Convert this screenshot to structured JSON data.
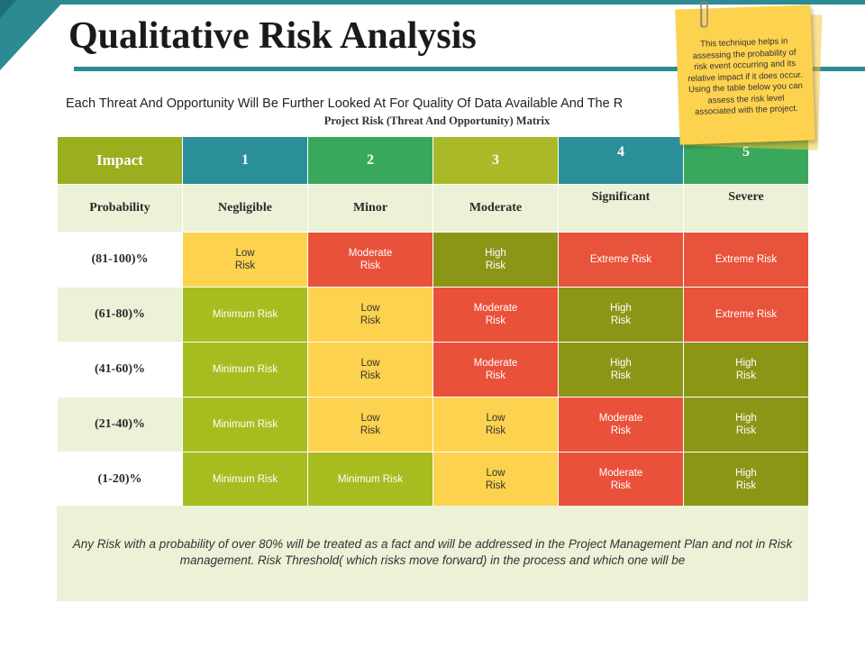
{
  "title": "Qualitative Risk Analysis",
  "intro": "Each Threat And Opportunity Will Be Further Looked At For Quality Of Data Available And The R",
  "matrix_title": "Project Risk (Threat And Opportunity) Matrix",
  "note": "This technique helps in assessing the probability of risk event occurring and its relative impact if it does occur. Using the table below you can assess the risk level associated with the project.",
  "header": {
    "impact_label": "Impact",
    "levels": [
      "1",
      "2",
      "3",
      "4",
      "5"
    ]
  },
  "labels": {
    "probability": "Probability",
    "severities": [
      "Negligible",
      "Minor",
      "Moderate",
      "Significant",
      "Severe"
    ]
  },
  "rows": [
    {
      "prob": "(81-100)%",
      "cells": [
        [
          "Low",
          "Risk"
        ],
        [
          "Moderate",
          "Risk"
        ],
        [
          "High",
          "Risk"
        ],
        [
          "Extreme Risk",
          ""
        ],
        [
          "Extreme Risk",
          ""
        ]
      ]
    },
    {
      "prob": "(61-80)%",
      "cells": [
        [
          "Minimum Risk",
          ""
        ],
        [
          "Low",
          "Risk"
        ],
        [
          "Moderate",
          "Risk"
        ],
        [
          "High",
          "Risk"
        ],
        [
          "Extreme Risk",
          ""
        ]
      ]
    },
    {
      "prob": "(41-60)%",
      "cells": [
        [
          "Minimum Risk",
          ""
        ],
        [
          "Low",
          "Risk"
        ],
        [
          "Moderate",
          "Risk"
        ],
        [
          "High",
          "Risk"
        ],
        [
          "High",
          "Risk"
        ]
      ]
    },
    {
      "prob": "(21-40)%",
      "cells": [
        [
          "Minimum Risk",
          ""
        ],
        [
          "Low",
          "Risk"
        ],
        [
          "Low",
          "Risk"
        ],
        [
          "Moderate",
          "Risk"
        ],
        [
          "High",
          "Risk"
        ]
      ]
    },
    {
      "prob": "(1-20)%",
      "cells": [
        [
          "Minimum Risk",
          ""
        ],
        [
          "Minimum Risk",
          ""
        ],
        [
          "Low",
          "Risk"
        ],
        [
          "Moderate",
          "Risk"
        ],
        [
          "High",
          "Risk"
        ]
      ]
    }
  ],
  "footer": "Any Risk with a probability of over 80% will be treated as a fact and will be addressed in the Project Management Plan and not in Risk management. Risk Threshold( which risks move forward) in the process and which one will be",
  "colors": {
    "teal": "#2b8a92",
    "low": "#fdd24e",
    "moderate": "#ea513a",
    "high": "#8b9617",
    "minimum": "#a7bc1f"
  }
}
